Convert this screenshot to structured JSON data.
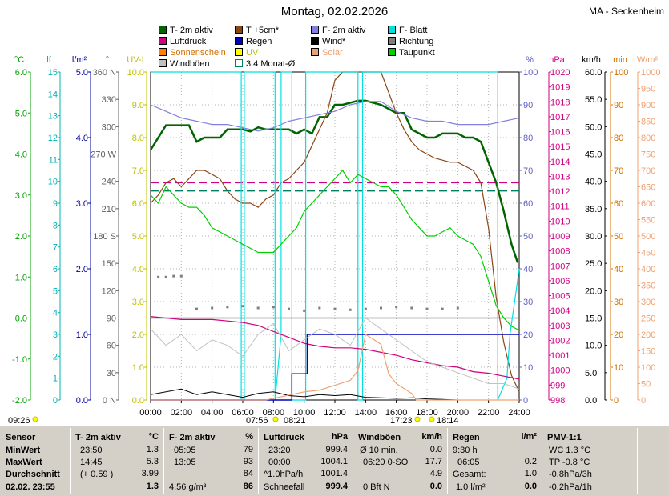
{
  "title": "Montag, 02.02.2026",
  "station": "MA - Seckenheim",
  "legend": [
    {
      "label": "T- 2m aktiv",
      "color": "#006400"
    },
    {
      "label": "T +5cm*",
      "color": "#8b4513"
    },
    {
      "label": "F- 2m aktiv",
      "color": "#8080e0"
    },
    {
      "label": "F- Blatt",
      "color": "#00e0e0"
    },
    {
      "label": "Luftdruck",
      "color": "#d00080"
    },
    {
      "label": "Regen",
      "color": "#0000c0"
    },
    {
      "label": "Wind*",
      "color": "#000000"
    },
    {
      "label": "Richtung",
      "color": "#808080"
    },
    {
      "label": "Sonnenschein",
      "color": "#ff8000"
    },
    {
      "label": "UV",
      "color": "#ffff00"
    },
    {
      "label": "Solar",
      "color": "#f0a070"
    },
    {
      "label": "Taupunkt",
      "color": "#00d000"
    },
    {
      "label": "Windböen",
      "color": "#c0c0c0"
    },
    {
      "label": "3.4 Monat-Ø",
      "color": "#ffffff"
    }
  ],
  "chart_data": {
    "type": "line",
    "title": "Montag, 02.02.2026",
    "x_ticks": [
      "00:00",
      "02:00",
      "04:00",
      "06:00",
      "08:00",
      "10:00",
      "12:00",
      "14:00",
      "16:00",
      "18:00",
      "20:00",
      "22:00",
      "24:00"
    ],
    "x_range_hours": [
      0,
      24
    ],
    "axes": {
      "temp_c": {
        "unit": "°C",
        "ticks": [
          "6.0",
          "5.0",
          "4.0",
          "3.0",
          "2.0",
          "1.0",
          "0.0",
          "-1.0",
          "-2.0"
        ],
        "range": [
          -2,
          6
        ],
        "color": "#00a000"
      },
      "leaf": {
        "unit": "lf",
        "ticks": [
          "15",
          "14",
          "13",
          "12",
          "11",
          "10",
          "9",
          "8",
          "7",
          "6",
          "5",
          "4",
          "3",
          "2",
          "1",
          "0"
        ],
        "range": [
          0,
          15
        ],
        "color": "#00b0b0"
      },
      "rain_lm2": {
        "unit": "l/m²",
        "ticks": [
          "5.0",
          "4.0",
          "3.0",
          "2.0",
          "1.0",
          "0.0"
        ],
        "range": [
          0,
          5
        ],
        "color": "#0000a0"
      },
      "direction": {
        "unit": "°",
        "ticks": [
          "360 N",
          "330",
          "300",
          "270 W",
          "240",
          "210",
          "180 S",
          "150",
          "120",
          "90",
          "60",
          "30",
          "0 N"
        ],
        "range": [
          0,
          360
        ],
        "color": "#606060"
      },
      "uv": {
        "unit": "UV-I",
        "ticks": [
          "10.0",
          "9.0",
          "8.0",
          "7.0",
          "6.0",
          "5.0",
          "4.0",
          "3.0",
          "2.0",
          "1.0",
          "0.0"
        ],
        "range": [
          0,
          10
        ],
        "color": "#c0c000"
      },
      "humidity": {
        "unit": "%",
        "ticks": [
          "100",
          "90",
          "80",
          "70",
          "60",
          "50",
          "40",
          "30",
          "20",
          "10",
          "0"
        ],
        "range": [
          0,
          100
        ],
        "color": "#6060c0"
      },
      "pressure": {
        "unit": "hPa",
        "ticks": [
          "1020",
          "1019",
          "1018",
          "1017",
          "1016",
          "1015",
          "1014",
          "1013",
          "1012",
          "1011",
          "1010",
          "1009",
          "1008",
          "1007",
          "1006",
          "1005",
          "1004",
          "1003",
          "1002",
          "1001",
          "1000",
          "999",
          "998"
        ],
        "range": [
          998,
          1020
        ],
        "color": "#d00080"
      },
      "wind_kmh": {
        "unit": "km/h",
        "ticks": [
          "60.0",
          "55.0",
          "50.0",
          "45.0",
          "40.0",
          "35.0",
          "30.0",
          "25.0",
          "20.0",
          "15.0",
          "10.0",
          "5.0",
          "0.0"
        ],
        "range": [
          0,
          60
        ],
        "color": "#000000"
      },
      "sun_min": {
        "unit": "min",
        "ticks": [
          "100",
          "90",
          "80",
          "70",
          "60",
          "50",
          "40",
          "30",
          "20",
          "10",
          "0"
        ],
        "range": [
          0,
          100
        ],
        "color": "#d07000"
      },
      "solar_wm2": {
        "unit": "W/m²",
        "ticks": [
          "1000",
          "950",
          "900",
          "850",
          "800",
          "750",
          "700",
          "650",
          "600",
          "550",
          "500",
          "450",
          "400",
          "350",
          "300",
          "250",
          "200",
          "150",
          "100",
          "50",
          "0"
        ],
        "range": [
          0,
          1000
        ],
        "color": "#f0a070"
      }
    },
    "series": [
      {
        "name": "T- 2m aktiv",
        "axis": "temp_c",
        "color": "#006400",
        "x": [
          0,
          0.5,
          1,
          1.5,
          2,
          2.5,
          3,
          3.5,
          4,
          4.5,
          5,
          5.5,
          6,
          6.5,
          7,
          7.5,
          8,
          8.5,
          9,
          9.5,
          10,
          10.5,
          11,
          11.5,
          12,
          12.5,
          13,
          13.5,
          14,
          14.5,
          15,
          15.5,
          16,
          16.5,
          17,
          17.5,
          18,
          18.5,
          19,
          19.5,
          20,
          20.5,
          21,
          21.5,
          22,
          22.5,
          23,
          23.5,
          23.9
        ],
        "y": [
          4.1,
          4.4,
          4.7,
          4.7,
          4.7,
          4.7,
          4.3,
          4.4,
          4.4,
          4.4,
          4.6,
          4.6,
          4.6,
          4.55,
          4.65,
          4.6,
          4.6,
          4.6,
          4.6,
          4.5,
          4.6,
          4.5,
          4.9,
          4.9,
          5.2,
          5.2,
          5.25,
          5.3,
          5.3,
          5.25,
          5.2,
          5.1,
          5.0,
          5.0,
          4.6,
          4.5,
          4.4,
          4.4,
          4.5,
          4.5,
          4.5,
          4.4,
          4.4,
          4.3,
          3.8,
          3.3,
          2.6,
          1.8,
          1.35
        ]
      },
      {
        "name": "T +5cm*",
        "axis": "temp_c",
        "color": "#8b4513",
        "x": [
          0,
          0.5,
          1,
          1.5,
          2,
          2.5,
          3,
          3.5,
          4,
          4.5,
          5,
          5.5,
          6,
          6.5,
          7,
          7.5,
          8,
          8.5,
          9,
          9.5,
          10,
          10.5,
          11,
          11.5,
          12,
          12.5,
          13,
          13.5,
          14,
          14.5,
          15,
          15.5,
          16,
          16.5,
          17,
          17.5,
          18,
          18.5,
          19,
          19.5,
          20,
          20.5,
          21,
          21.5,
          22,
          22.5,
          23,
          23.5,
          24
        ],
        "y": [
          2.8,
          3.0,
          3.3,
          3.4,
          3.2,
          3.4,
          3.6,
          3.6,
          3.5,
          3.4,
          3.1,
          2.9,
          2.8,
          2.8,
          2.7,
          2.9,
          3.0,
          3.3,
          3.4,
          3.6,
          3.8,
          4.2,
          4.6,
          5.0,
          5.8,
          6.5,
          6.8,
          7.0,
          7.2,
          6.8,
          6.0,
          5.5,
          5.0,
          4.6,
          4.3,
          4.1,
          4.0,
          3.9,
          3.85,
          3.8,
          3.8,
          3.7,
          3.6,
          3.3,
          2.2,
          0.5,
          -0.6,
          -1.4,
          -1.8
        ]
      },
      {
        "name": "F- 2m aktiv",
        "axis": "humidity",
        "color": "#8080e0",
        "x": [
          0,
          1,
          2,
          3,
          4,
          5,
          6,
          7,
          8,
          9,
          10,
          11,
          12,
          13,
          14,
          15,
          16,
          17,
          18,
          19,
          20,
          21,
          22,
          23,
          24
        ],
        "y": [
          90,
          88,
          86,
          85,
          84,
          84,
          83,
          82,
          83,
          85,
          86,
          87,
          88,
          90,
          91,
          91,
          88,
          86,
          85,
          85,
          84,
          84,
          84,
          85,
          86
        ]
      },
      {
        "name": "F- Blatt",
        "axis": "leaf",
        "color": "#00e0e0",
        "x": [
          0,
          5.9,
          5.9,
          6.1,
          6.1,
          8.1,
          8.1,
          8.5,
          8.5,
          9.2,
          9.2,
          10.1,
          10.1,
          10.3,
          10.3,
          13.5,
          13.5,
          13.8,
          13.8,
          22.6,
          22.6,
          23.2,
          23.4,
          23.8,
          24
        ],
        "y": [
          15,
          15,
          0,
          0,
          15,
          15,
          0,
          3,
          15,
          15,
          0,
          0,
          15,
          15,
          15,
          15,
          0,
          0,
          15,
          15,
          0,
          1,
          3,
          5,
          6
        ]
      },
      {
        "name": "Luftdruck",
        "axis": "pressure",
        "color": "#d00080",
        "x": [
          0,
          1,
          2,
          3,
          4,
          5,
          6,
          7,
          8,
          9,
          10,
          11,
          12,
          13,
          14,
          15,
          16,
          17,
          18,
          19,
          20,
          21,
          22,
          23,
          24
        ],
        "y": [
          1003.6,
          1003.5,
          1003.4,
          1003.4,
          1003.4,
          1003.3,
          1003.2,
          1003.0,
          1002.6,
          1002.2,
          1001.8,
          1001.6,
          1001.5,
          1001.5,
          1001.4,
          1001.2,
          1001.0,
          1000.7,
          1000.5,
          1000.3,
          1000.2,
          999.9,
          999.8,
          999.6,
          999.4
        ]
      },
      {
        "name": "Regen",
        "axis": "rain_lm2",
        "color": "#0000c0",
        "x": [
          0,
          9.2,
          9.2,
          10.2,
          10.2,
          24
        ],
        "y": [
          0,
          0,
          0.4,
          0.4,
          1.0,
          1.0
        ]
      },
      {
        "name": "Windböen",
        "axis": "wind_kmh",
        "color": "#c0c0c0",
        "x": [
          0,
          1,
          2,
          3,
          4,
          5,
          6,
          7,
          8,
          9,
          10,
          11,
          12,
          13,
          14,
          15,
          16,
          17,
          18,
          19,
          20,
          21,
          22,
          23,
          24
        ],
        "y": [
          13,
          10,
          12,
          9,
          11,
          10,
          8,
          12,
          14,
          9,
          11,
          13,
          12,
          10,
          15,
          13,
          11,
          9,
          7,
          6,
          5,
          4,
          3,
          3,
          2
        ]
      },
      {
        "name": "Wind*",
        "axis": "wind_kmh",
        "color": "#000000",
        "x": [
          0,
          1,
          2,
          3,
          4,
          5,
          6,
          7,
          8,
          9,
          10,
          11,
          12,
          13,
          14,
          15,
          16,
          17,
          18,
          19,
          20,
          21,
          22,
          23,
          24
        ],
        "y": [
          1,
          1.5,
          2,
          1,
          1.5,
          1,
          0.5,
          1.2,
          1.5,
          0.8,
          0.6,
          1,
          0.8,
          1,
          0.5,
          0.4,
          0.3,
          0.4,
          0.2,
          0.1,
          0,
          0,
          0,
          0,
          0
        ]
      },
      {
        "name": "Solar",
        "axis": "solar_wm2",
        "color": "#f0a070",
        "x": [
          0,
          7.5,
          8,
          9,
          10,
          11,
          12,
          13,
          13.5,
          14,
          15,
          15.5,
          16,
          17,
          17.3,
          18,
          24
        ],
        "y": [
          0,
          0,
          5,
          15,
          25,
          30,
          45,
          60,
          90,
          200,
          170,
          80,
          50,
          20,
          0,
          0,
          0
        ]
      },
      {
        "name": "Taupunkt",
        "axis": "temp_c",
        "color": "#00d000",
        "x": [
          0,
          0.5,
          1,
          1.5,
          2,
          2.5,
          3,
          3.5,
          4,
          4.5,
          5,
          5.5,
          6,
          6.5,
          7,
          7.5,
          8,
          8.5,
          9,
          9.5,
          10,
          10.5,
          11,
          11.5,
          12,
          12.5,
          13,
          13.5,
          14,
          14.5,
          15,
          15.5,
          16,
          16.5,
          17,
          17.5,
          18,
          18.5,
          19,
          19.5,
          20,
          20.5,
          21,
          21.5,
          22,
          22.5,
          23,
          23.5,
          24
        ],
        "y": [
          3.0,
          2.8,
          3.2,
          3.0,
          2.8,
          2.7,
          2.7,
          2.5,
          2.2,
          2.1,
          2.0,
          1.9,
          1.8,
          1.7,
          1.6,
          1.6,
          1.6,
          1.8,
          2.0,
          2.2,
          2.6,
          2.8,
          3.0,
          3.2,
          3.4,
          3.6,
          3.3,
          3.5,
          3.4,
          3.3,
          3.2,
          3.2,
          3.0,
          2.7,
          2.4,
          2.2,
          2.0,
          2.0,
          2.1,
          2.2,
          2.0,
          1.9,
          1.8,
          1.5,
          0.9,
          0.3,
          0.0,
          -0.2,
          -0.3
        ]
      },
      {
        "name": "Richtung",
        "axis": "direction",
        "color": "#808080",
        "x": [
          0.5,
          1,
          1.5,
          2,
          3,
          4,
          5,
          6,
          7,
          8,
          9,
          10,
          11,
          12,
          13,
          14,
          15,
          16,
          17,
          18,
          19,
          20
        ],
        "y": [
          135,
          135,
          136,
          136,
          100,
          101,
          102,
          103,
          101,
          102,
          100,
          98,
          101,
          100,
          99,
          100,
          101,
          102,
          101,
          100,
          100,
          101
        ]
      }
    ],
    "reference_lines": [
      {
        "axis": "temp_c",
        "value": 3.3,
        "color": "#d00080",
        "style": "dashed"
      },
      {
        "axis": "temp_c",
        "value": 3.1,
        "color": "#008060",
        "style": "dashed"
      }
    ],
    "sun_events": {
      "sunrise_left": "09:26",
      "sunrise": "07:56",
      "sunset": "17:23",
      "twilight1": "08:21",
      "twilight2": "18:14"
    }
  },
  "table": {
    "sensor": {
      "head": "Sensor",
      "rows": [
        "MinWert",
        "MaxWert",
        "Durchschnitt",
        "02.02. 23:55"
      ]
    },
    "t2m": {
      "head": "T- 2m aktiv",
      "unit": "°C",
      "rows": [
        [
          "23:50",
          "1.3"
        ],
        [
          "14:45",
          "5.3"
        ],
        [
          "(+ 0.59 )",
          "3.99"
        ],
        [
          "",
          "1.3"
        ]
      ]
    },
    "f2m": {
      "head": "F- 2m aktiv",
      "unit": "%",
      "rows": [
        [
          "05:05",
          "79"
        ],
        [
          "13:05",
          "93"
        ],
        [
          "",
          "84"
        ],
        [
          "4.56 g/m³",
          "86"
        ]
      ]
    },
    "pressure": {
      "head": "Luftdruck",
      "unit": "hPa",
      "rows": [
        [
          "23:20",
          "999.4"
        ],
        [
          "00:00",
          "1004.1"
        ],
        [
          "^1.0hPa/h",
          "1001.4"
        ],
        [
          "Schneefall",
          "999.4"
        ]
      ]
    },
    "gusts": {
      "head": "Windböen",
      "unit": "km/h",
      "rows": [
        [
          "Ø 10 min.",
          "0.0"
        ],
        [
          "06:20     0-SO",
          "17.7"
        ],
        [
          "",
          "4.9"
        ],
        [
          "0 Bft N",
          "0.0"
        ]
      ]
    },
    "rain": {
      "head": "Regen",
      "unit": "l/m²",
      "rows": [
        [
          "9:30 h",
          ""
        ],
        [
          "06:05",
          "0.2"
        ],
        [
          "Gesamt:",
          "1.0"
        ],
        [
          "1.0 l/m²",
          "0.0"
        ]
      ]
    },
    "pmv": {
      "head": "PMV-1:1",
      "rows": [
        "WC 1.3 °C",
        "TP -0.8 °C",
        "-0.8hPa/3h",
        "-0.2hPa/1h"
      ]
    }
  }
}
